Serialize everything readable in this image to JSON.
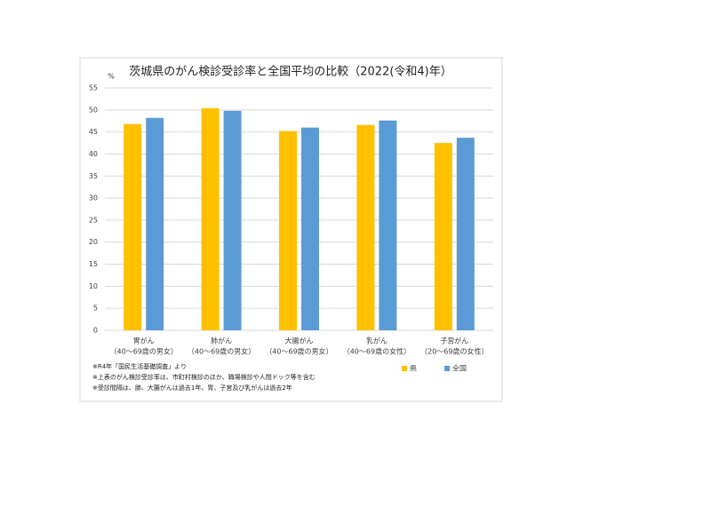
{
  "chart_data": {
    "type": "bar",
    "title": "茨城県のがん検診受診率と全国平均の比較（2022(令和4)年）",
    "y_unit": "%",
    "categories": [
      [
        "胃がん",
        "（40～69歳の男女）"
      ],
      [
        "肺がん",
        "（40～69歳の男女）"
      ],
      [
        "大腸がん",
        "（40～69歳の男女）"
      ],
      [
        "乳がん",
        "（40～69歳の女性）"
      ],
      [
        "子宮がん",
        "（20～69歳の女性）"
      ]
    ],
    "series": [
      {
        "name": "県",
        "color": "#ffc000",
        "values": [
          46.8,
          50.4,
          45.2,
          46.6,
          42.5
        ]
      },
      {
        "name": "全国",
        "color": "#5b9bd5",
        "values": [
          48.2,
          49.8,
          46.0,
          47.6,
          43.7
        ]
      }
    ],
    "ylim": [
      0,
      55
    ],
    "yticks": [
      0,
      5,
      10,
      15,
      20,
      25,
      30,
      35,
      40,
      45,
      50,
      55
    ],
    "grid": true,
    "notes": [
      "※R4年「国民生活基礎調査」より",
      "※上表のがん検診受診率は、市町村検診のほか、職場検診や人間ドック等を含む",
      "※受診間隔は、肺、大腸がんは過去1年、胃、子宮及び乳がんは過去2年"
    ]
  }
}
